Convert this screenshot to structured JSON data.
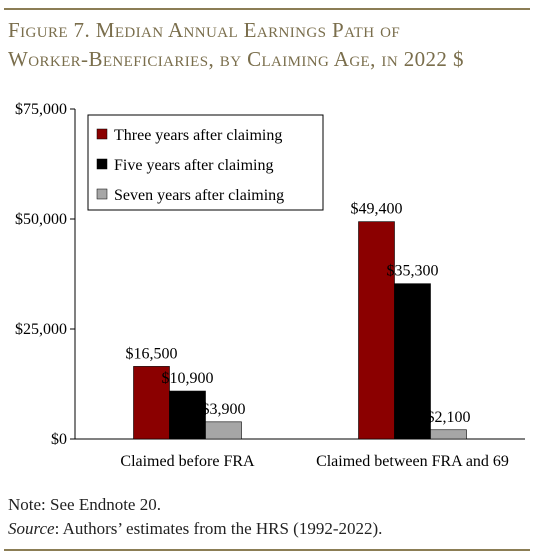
{
  "figure": {
    "title_line1": "Figure 7. Median Annual Earnings Path of",
    "title_line2": "Worker-Beneficiaries, by Claiming Age, in 2022 $",
    "accent_color": "#8b7d55",
    "title_color": "#7a6e4c"
  },
  "notes": {
    "note": "Note: See Endnote 20.",
    "source_label": "Source",
    "source_text": ": Authors’ estimates from the HRS (1992-2022)."
  },
  "chart_data": {
    "type": "bar",
    "categories": [
      "Claimed before FRA",
      "Claimed between FRA and 69"
    ],
    "series": [
      {
        "name": "Three years after claiming",
        "values": [
          16500,
          49400
        ],
        "labels": [
          "$16,500",
          "$49,400"
        ],
        "color": "#8b0000"
      },
      {
        "name": "Five years after claiming",
        "values": [
          10900,
          35300
        ],
        "labels": [
          "$10,900",
          "$35,300"
        ],
        "color": "#000000"
      },
      {
        "name": "Seven years after claiming",
        "values": [
          3900,
          2100
        ],
        "labels": [
          "$3,900",
          "$2,100"
        ],
        "color": "#a6a6a6"
      }
    ],
    "yticks": [
      0,
      25000,
      50000,
      75000
    ],
    "ytick_labels": [
      "$0",
      "$25,000",
      "$50,000",
      "$75,000"
    ],
    "ylim": [
      0,
      75000
    ],
    "title": "",
    "xlabel": "",
    "ylabel": "",
    "grid": false,
    "legend_position": "top-left"
  }
}
